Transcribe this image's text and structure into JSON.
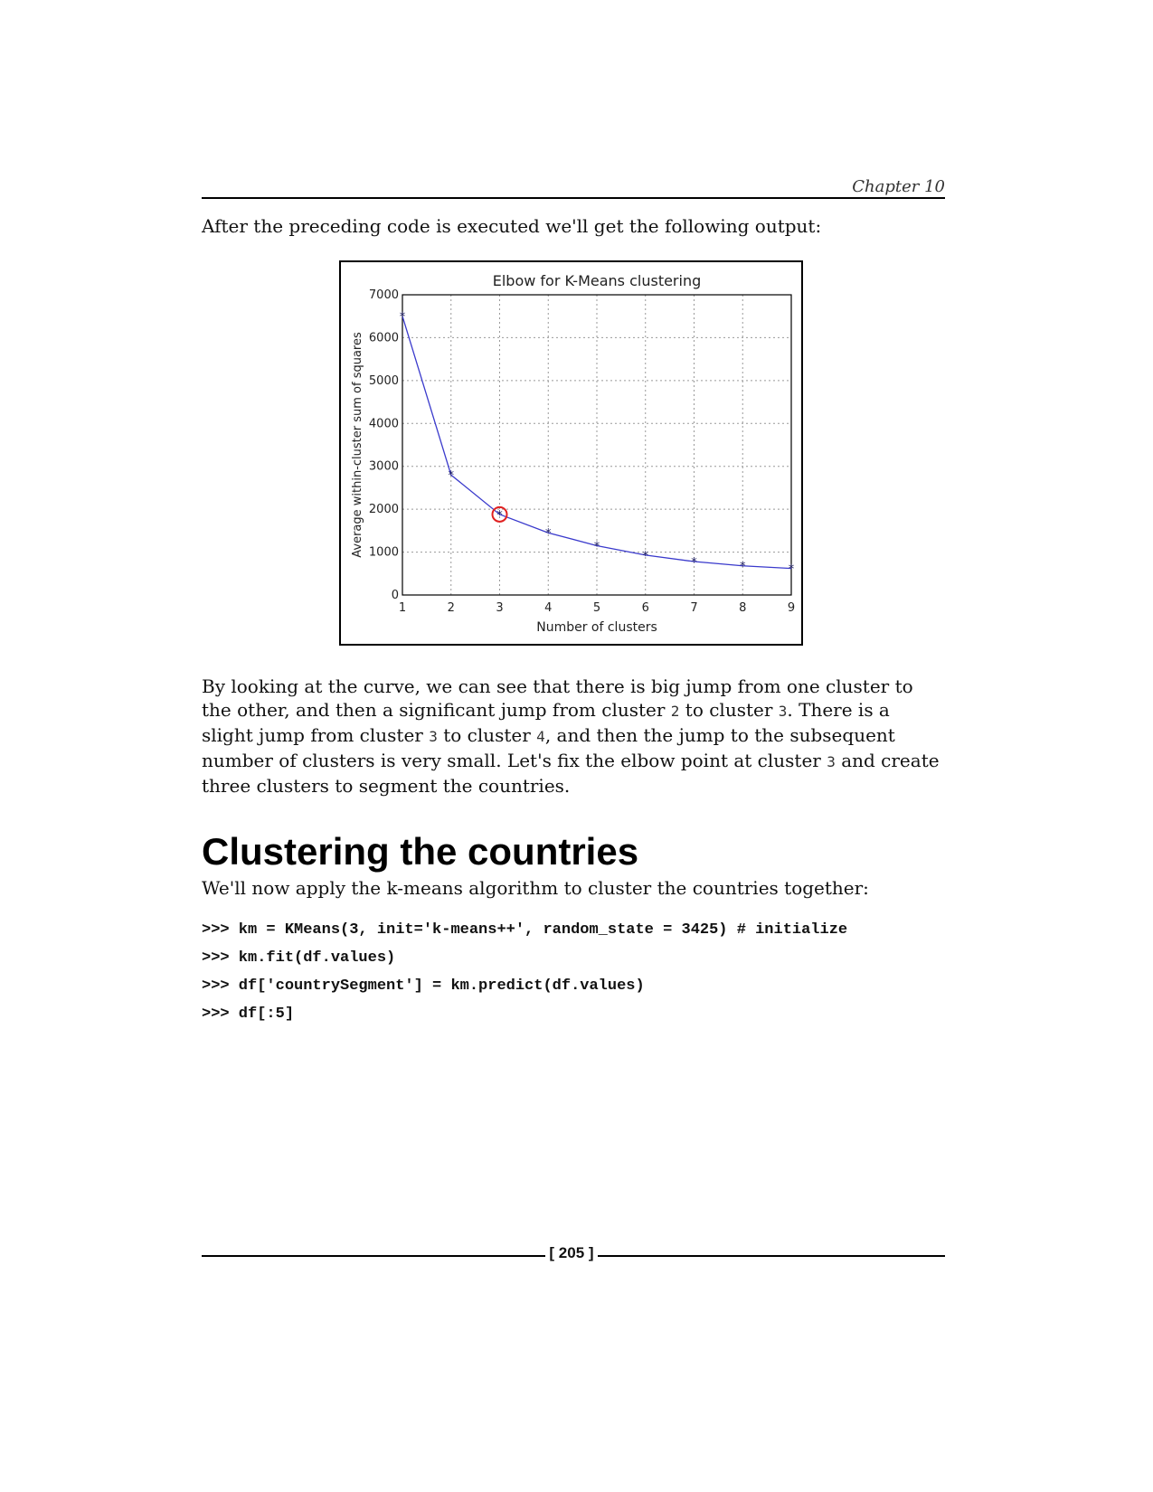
{
  "header": {
    "chapter": "Chapter 10"
  },
  "intro_text": "After the preceding code is executed we'll get the following output:",
  "chart_data": {
    "type": "line",
    "title": "Elbow for K-Means clustering",
    "xlabel": "Number of clusters",
    "ylabel": "Average within-cluster sum of squares",
    "x": [
      1,
      2,
      3,
      4,
      5,
      6,
      7,
      8,
      9
    ],
    "y": [
      6500,
      2800,
      1880,
      1450,
      1150,
      930,
      780,
      680,
      620
    ],
    "xlim": [
      1,
      9
    ],
    "ylim": [
      0,
      7000
    ],
    "xticks": [
      "1",
      "2",
      "3",
      "4",
      "5",
      "6",
      "7",
      "8",
      "9"
    ],
    "yticks": [
      "0",
      "1000",
      "2000",
      "3000",
      "4000",
      "5000",
      "6000",
      "7000"
    ],
    "grid": true,
    "highlight": {
      "x": 3,
      "y": 1880,
      "color": "#e02020"
    },
    "line_color": "#3a3acc"
  },
  "paragraph": {
    "p1": "By looking at the curve, we can see that there is big jump from one cluster to the other, and then a significant jump from cluster ",
    "c1": "2",
    "p2": " to cluster ",
    "c2": "3",
    "p3": ". There is a slight jump from cluster ",
    "c3": "3",
    "p4": " to cluster ",
    "c4": "4",
    "p5": ", and then the jump to the subsequent number of clusters is very small. Let's fix the elbow point at cluster ",
    "c5": "3",
    "p6": " and create three clusters to segment the countries."
  },
  "section_title": "Clustering the countries",
  "section_lead": "We'll now apply the k-means algorithm to cluster the countries together:",
  "code_lines": [
    ">>> km = KMeans(3, init='k-means++', random_state = 3425) # initialize",
    ">>> km.fit(df.values)",
    ">>> df['countrySegment'] = km.predict(df.values)",
    ">>> df[:5]"
  ],
  "footer": {
    "page_number": "[ 205 ]"
  }
}
